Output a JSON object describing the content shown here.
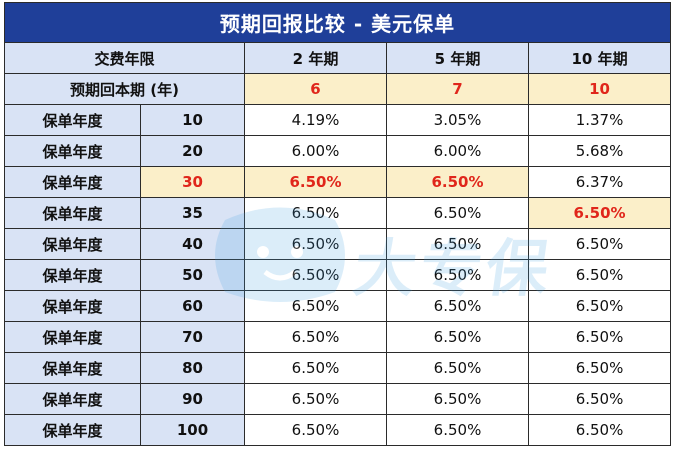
{
  "title": "预期回报比较 - 美元保单",
  "header": {
    "pay_term_label": "交费年限",
    "terms": [
      "2 年期",
      "5 年期",
      "10 年期"
    ]
  },
  "breakeven": {
    "label": "预期回本期 (年)",
    "values": [
      "6",
      "7",
      "10"
    ]
  },
  "row_label": "保单年度",
  "rows": [
    {
      "year": "10",
      "values": [
        "4.19%",
        "3.05%",
        "1.37%"
      ]
    },
    {
      "year": "20",
      "values": [
        "6.00%",
        "6.00%",
        "5.68%"
      ]
    },
    {
      "year": "30",
      "values": [
        "6.50%",
        "6.50%",
        "6.37%"
      ]
    },
    {
      "year": "35",
      "values": [
        "6.50%",
        "6.50%",
        "6.50%"
      ]
    },
    {
      "year": "40",
      "values": [
        "6.50%",
        "6.50%",
        "6.50%"
      ]
    },
    {
      "year": "50",
      "values": [
        "6.50%",
        "6.50%",
        "6.50%"
      ]
    },
    {
      "year": "60",
      "values": [
        "6.50%",
        "6.50%",
        "6.50%"
      ]
    },
    {
      "year": "70",
      "values": [
        "6.50%",
        "6.50%",
        "6.50%"
      ]
    },
    {
      "year": "80",
      "values": [
        "6.50%",
        "6.50%",
        "6.50%"
      ]
    },
    {
      "year": "90",
      "values": [
        "6.50%",
        "6.50%",
        "6.50%"
      ]
    },
    {
      "year": "100",
      "values": [
        "6.50%",
        "6.50%",
        "6.50%"
      ]
    }
  ],
  "watermark": {
    "text": "大专保",
    "icon": "cartoon-face-icon"
  },
  "colors": {
    "title_bg": "#1f3f99",
    "label_bg": "#d9e3f5",
    "highlight_bg": "#fbefc9",
    "highlight_text": "#e0261b",
    "watermark": "#3f9fe0"
  }
}
